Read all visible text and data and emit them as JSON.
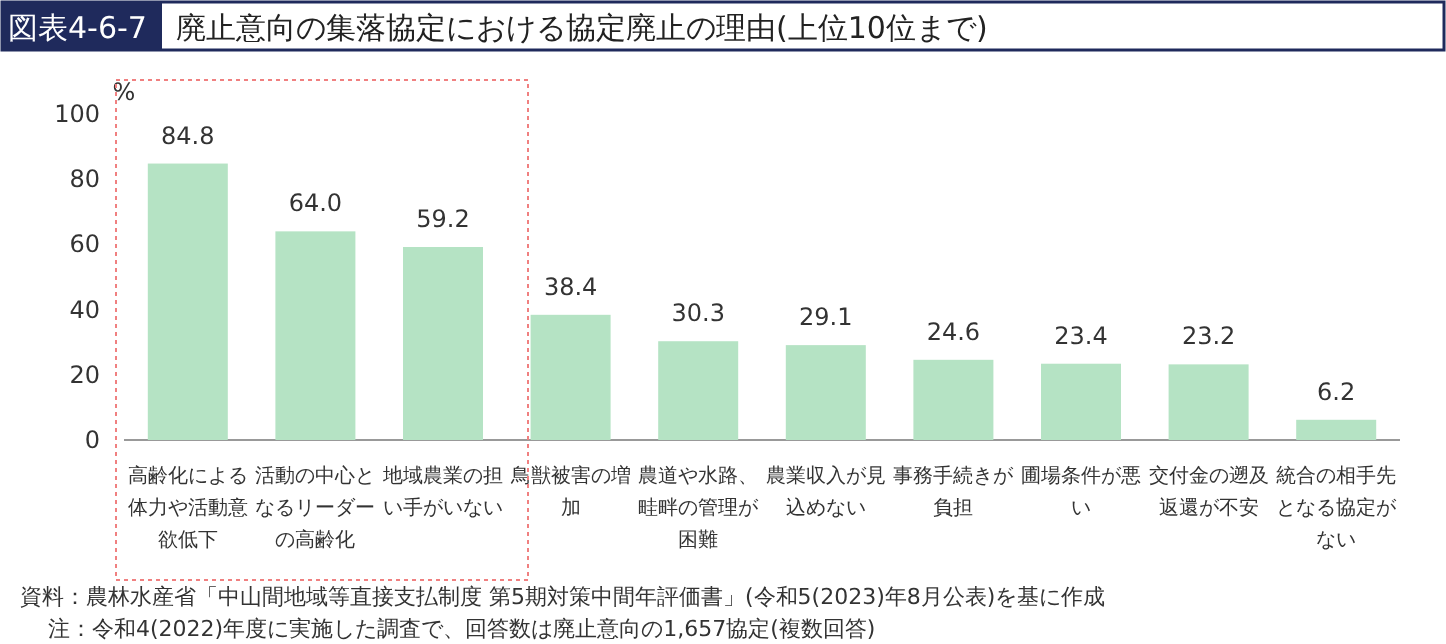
{
  "chart_data": {
    "type": "bar",
    "title": "廃止意向の集落協定における協定廃止の理由(上位10位まで)",
    "ylabel": "%",
    "categories": [
      "高齢化による体力や活動意欲低下",
      "活動の中心となるリーダーの高齢化",
      "地域農業の担い手がいない",
      "鳥獣被害の増加",
      "農道や水路、畦畔の管理が困難",
      "農業収入が見込めない",
      "事務手続きが負担",
      "圃場条件が悪い",
      "交付金の遡及返還が不安",
      "統合の相手先となる協定がない"
    ],
    "values": [
      84.8,
      64.0,
      59.2,
      38.4,
      30.3,
      29.1,
      24.6,
      23.4,
      23.2,
      6.2
    ],
    "value_labels": [
      "84.8",
      "64.0",
      "59.2",
      "38.4",
      "30.3",
      "29.1",
      "24.6",
      "23.4",
      "23.2",
      "6.2"
    ],
    "color": "#b5e3c4",
    "ylim": [
      0,
      100
    ],
    "yticks": [
      0,
      20,
      40,
      60,
      80,
      100
    ],
    "annotations": [
      "図表4-6-7",
      "資料：農林水産省「中山間地域等直接支払制度 第5期対策中間年評価書」(令和5(2023)年8月公表)を基に作成",
      "注：令和4(2022)年度に実施した調査で、回答数は廃止意向の1,657協定(複数回答)"
    ]
  }
}
